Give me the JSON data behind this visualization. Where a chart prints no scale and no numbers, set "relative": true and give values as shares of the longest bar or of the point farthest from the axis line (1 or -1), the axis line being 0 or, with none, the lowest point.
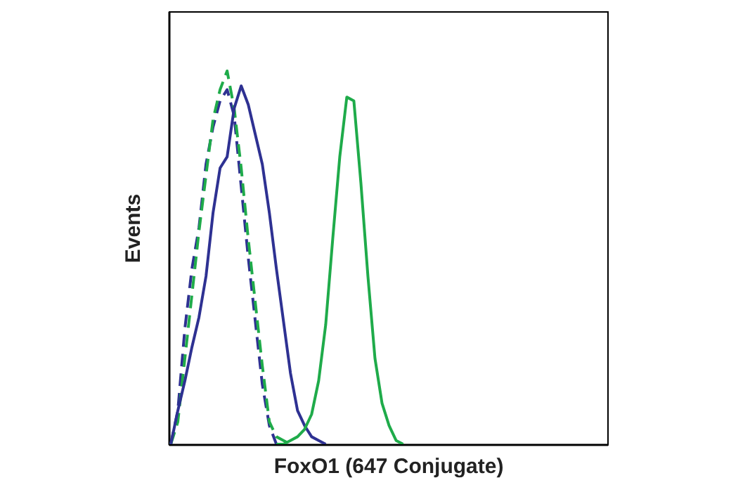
{
  "chart_data": {
    "type": "line",
    "relative": true,
    "xlabel": "FoxO1 (647 Conjugate)",
    "ylabel": "Events",
    "categories": [
      null,
      null,
      null,
      null,
      null,
      null,
      null,
      null,
      null,
      null,
      null,
      null,
      null,
      null,
      null,
      null,
      null,
      null,
      null,
      null,
      null,
      null,
      null,
      null,
      null,
      null,
      null,
      null,
      null,
      null,
      null,
      null,
      null,
      null,
      null,
      null,
      null,
      null,
      null,
      null,
      null,
      null,
      null,
      null,
      null,
      null,
      null,
      null,
      null,
      null,
      null,
      null,
      null,
      null,
      null,
      null,
      null,
      null,
      null,
      null,
      null,
      null,
      null
    ],
    "series": [
      {
        "color": "#2e3192",
        "line_style": "dashed",
        "values": [
          0,
          0.09,
          0.31,
          0.47,
          0.58,
          0.75,
          0.85,
          0.92,
          0.95,
          0.88,
          0.69,
          0.5,
          0.33,
          0.16,
          0.05,
          0,
          null,
          null,
          null,
          null,
          null,
          null,
          null,
          null,
          null,
          null,
          null,
          null,
          null,
          null,
          null,
          null,
          null,
          null,
          null,
          null,
          null,
          null,
          null,
          null,
          null,
          null,
          null,
          null,
          null,
          null,
          null,
          null,
          null,
          null,
          null,
          null,
          null,
          null,
          null,
          null,
          null,
          null,
          null,
          null,
          null,
          null,
          null
        ]
      },
      {
        "color": "#1fab4a",
        "line_style": "dashed",
        "values": [
          0,
          0.06,
          0.23,
          0.4,
          0.57,
          0.72,
          0.87,
          0.95,
          1,
          0.9,
          0.74,
          0.55,
          0.38,
          0.21,
          0.06,
          0.02,
          0.01,
          0,
          null,
          null,
          null,
          null,
          null,
          null,
          null,
          null,
          null,
          null,
          null,
          null,
          null,
          null,
          null,
          null,
          null,
          null,
          null,
          null,
          null,
          null,
          null,
          null,
          null,
          null,
          null,
          null,
          null,
          null,
          null,
          null,
          null,
          null,
          null,
          null,
          null,
          null,
          null,
          null,
          null,
          null,
          null,
          null,
          null
        ]
      },
      {
        "color": "#2e3192",
        "line_style": "solid",
        "values": [
          0,
          0.09,
          0.17,
          0.26,
          0.34,
          0.45,
          0.62,
          0.74,
          0.77,
          0.9,
          0.96,
          0.91,
          0.83,
          0.75,
          0.62,
          0.47,
          0.33,
          0.19,
          0.09,
          0.05,
          0.02,
          0.01,
          0,
          null,
          null,
          null,
          null,
          null,
          null,
          null,
          null,
          null,
          null,
          null,
          null,
          null,
          null,
          null,
          null,
          null,
          null,
          null,
          null,
          null,
          null,
          null,
          null,
          null,
          null,
          null,
          null,
          null,
          null,
          null,
          null,
          null,
          null,
          null,
          null,
          null,
          null,
          null,
          null
        ]
      },
      {
        "color": "#1fab4a",
        "line_style": "solid",
        "values": [
          null,
          null,
          null,
          null,
          null,
          null,
          null,
          null,
          null,
          null,
          null,
          null,
          null,
          null,
          null,
          0,
          0,
          0.01,
          0.02,
          0.04,
          0.08,
          0.17,
          0.32,
          0.55,
          0.77,
          0.93,
          0.92,
          0.7,
          0.45,
          0.23,
          0.11,
          0.05,
          0.01,
          0,
          null,
          null,
          null,
          null,
          null,
          null,
          null,
          null,
          null,
          null,
          null,
          null,
          null,
          null,
          null,
          null,
          null,
          null,
          null,
          null,
          null,
          null,
          null,
          null,
          null,
          null,
          null,
          null,
          null
        ]
      }
    ]
  }
}
